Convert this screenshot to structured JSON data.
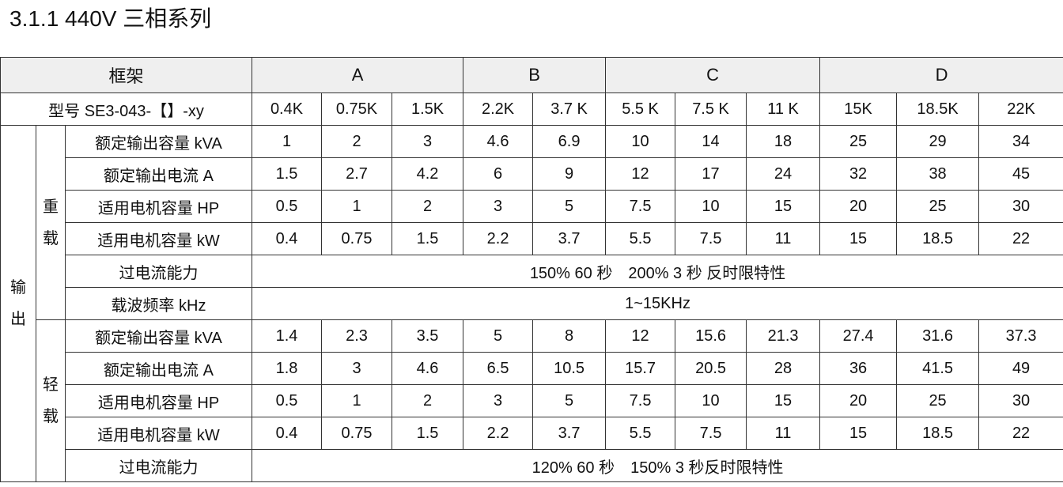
{
  "title": "3.1.1 440V 三相系列",
  "frame_label": "框架",
  "frames": [
    {
      "name": "A",
      "span": 3
    },
    {
      "name": "B",
      "span": 2
    },
    {
      "name": "C",
      "span": 3
    },
    {
      "name": "D",
      "span": 3
    }
  ],
  "model_label": "型号 SE3-043-【】-xy",
  "models": [
    "0.4K",
    "0.75K",
    "1.5K",
    "2.2K",
    "3.7 K",
    "5.5 K",
    "7.5 K",
    "11 K",
    "15K",
    "18.5K",
    "22K"
  ],
  "output_label": [
    "输",
    "出"
  ],
  "heavy": {
    "label": [
      "重",
      "载"
    ],
    "rows": [
      {
        "label": "额定输出容量 kVA",
        "values": [
          "1",
          "2",
          "3",
          "4.6",
          "6.9",
          "10",
          "14",
          "18",
          "25",
          "29",
          "34"
        ]
      },
      {
        "label": "额定输出电流 A",
        "values": [
          "1.5",
          "2.7",
          "4.2",
          "6",
          "9",
          "12",
          "17",
          "24",
          "32",
          "38",
          "45"
        ]
      },
      {
        "label": "适用电机容量 HP",
        "values": [
          "0.5",
          "1",
          "2",
          "3",
          "5",
          "7.5",
          "10",
          "15",
          "20",
          "25",
          "30"
        ]
      },
      {
        "label": "适用电机容量 kW",
        "values": [
          "0.4",
          "0.75",
          "1.5",
          "2.2",
          "3.7",
          "5.5",
          "7.5",
          "11",
          "15",
          "18.5",
          "22"
        ]
      },
      {
        "label": "过电流能力",
        "merged": "150% 60 秒　200% 3 秒 反时限特性"
      },
      {
        "label": "载波频率 kHz",
        "merged": "1~15KHz"
      }
    ]
  },
  "light": {
    "label": [
      "轻",
      "载"
    ],
    "rows": [
      {
        "label": "额定输出容量 kVA",
        "values": [
          "1.4",
          "2.3",
          "3.5",
          "5",
          "8",
          "12",
          "15.6",
          "21.3",
          "27.4",
          "31.6",
          "37.3"
        ]
      },
      {
        "label": "额定输出电流 A",
        "values": [
          "1.8",
          "3",
          "4.6",
          "6.5",
          "10.5",
          "15.7",
          "20.5",
          "28",
          "36",
          "41.5",
          "49"
        ]
      },
      {
        "label": "适用电机容量 HP",
        "values": [
          "0.5",
          "1",
          "2",
          "3",
          "5",
          "7.5",
          "10",
          "15",
          "20",
          "25",
          "30"
        ]
      },
      {
        "label": "适用电机容量 kW",
        "values": [
          "0.4",
          "0.75",
          "1.5",
          "2.2",
          "3.7",
          "5.5",
          "7.5",
          "11",
          "15",
          "18.5",
          "22"
        ]
      },
      {
        "label": "过电流能力",
        "merged": "120% 60 秒　150% 3 秒反时限特性"
      }
    ]
  }
}
